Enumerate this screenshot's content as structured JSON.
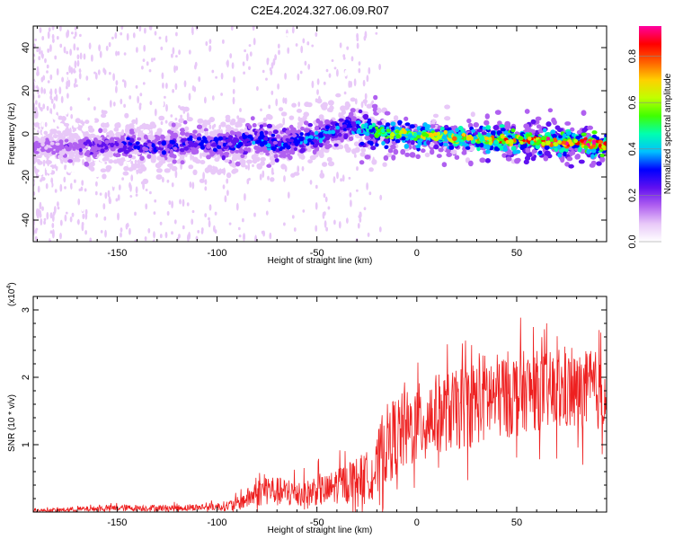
{
  "chart_data": [
    {
      "type": "heatmap",
      "title": "C2E4.2024.327.06.09.R07",
      "xlabel": "Height of straight line (km)",
      "ylabel": "Frequency (Hz)",
      "xlim": [
        -192,
        95
      ],
      "ylim": [
        -50,
        50
      ],
      "xticks": [
        -150,
        -100,
        -50,
        0,
        50
      ],
      "yticks": [
        -40,
        -20,
        0,
        20,
        40
      ],
      "colorbar": {
        "label": "Normalized spectral amplitude",
        "range": [
          0.0,
          0.93
        ],
        "ticks": [
          0.0,
          0.2,
          0.4,
          0.6,
          0.8
        ],
        "colors": [
          "#ffffff",
          "#e8c8f8",
          "#b060f0",
          "#6010f0",
          "#0000ff",
          "#00c0ff",
          "#00ffb0",
          "#40ff00",
          "#c0ff00",
          "#ffd000",
          "#ff6000",
          "#ff0000",
          "#ff00a0"
        ]
      },
      "ridge": {
        "x": [
          -192,
          -170,
          -150,
          -130,
          -110,
          -100,
          -90,
          -80,
          -70,
          -60,
          -50,
          -45,
          -40,
          -35,
          -30,
          -25,
          -20,
          -10,
          0,
          10,
          20,
          30,
          40,
          50,
          60,
          70,
          80,
          90,
          95
        ],
        "frequency": [
          -6,
          -6,
          -5,
          -6,
          -4,
          -5,
          -4,
          -2,
          -5,
          -3,
          -2,
          0,
          2,
          4,
          3,
          2,
          1,
          0,
          -1,
          -1,
          -2,
          -2,
          -3,
          -3,
          -3,
          -4,
          -4,
          -5,
          -6
        ],
        "peak_amplitude": [
          0.15,
          0.2,
          0.25,
          0.28,
          0.3,
          0.3,
          0.33,
          0.35,
          0.33,
          0.33,
          0.35,
          0.36,
          0.35,
          0.33,
          0.4,
          0.48,
          0.55,
          0.6,
          0.65,
          0.68,
          0.7,
          0.72,
          0.75,
          0.8,
          0.85,
          0.88,
          0.9,
          0.85,
          0.8
        ]
      }
    },
    {
      "type": "line",
      "xlabel": "Height of straight line (km)",
      "ylabel": "SNR (10 * v/v)",
      "y_multiplier": "(x10",
      "y_multiplier_exp": "4",
      "y_multiplier_close": ")",
      "xlim": [
        -192,
        95
      ],
      "ylim": [
        0,
        3.2
      ],
      "xticks": [
        -150,
        -100,
        -50,
        0,
        50
      ],
      "yticks": [
        1,
        2,
        3
      ],
      "series": [
        {
          "name": "SNR",
          "color": "#ee2020",
          "x": [
            -192,
            -180,
            -170,
            -160,
            -150,
            -140,
            -130,
            -120,
            -110,
            -100,
            -95,
            -90,
            -85,
            -80,
            -75,
            -70,
            -65,
            -60,
            -55,
            -50,
            -45,
            -40,
            -35,
            -30,
            -25,
            -20,
            -18,
            -15,
            -10,
            -5,
            0,
            5,
            10,
            15,
            20,
            25,
            30,
            35,
            40,
            45,
            50,
            55,
            60,
            65,
            70,
            75,
            80,
            85,
            90,
            95
          ],
          "values": [
            0.02,
            0.03,
            0.04,
            0.05,
            0.06,
            0.06,
            0.06,
            0.06,
            0.07,
            0.08,
            0.09,
            0.12,
            0.2,
            0.28,
            0.35,
            0.3,
            0.28,
            0.3,
            0.25,
            0.35,
            0.3,
            0.4,
            0.45,
            0.5,
            0.55,
            0.6,
            0.9,
            1.0,
            1.15,
            1.2,
            1.3,
            1.4,
            1.45,
            1.5,
            1.5,
            1.6,
            1.65,
            1.7,
            1.7,
            1.75,
            1.75,
            1.8,
            1.8,
            1.8,
            1.75,
            1.8,
            1.75,
            1.8,
            1.8,
            1.75
          ],
          "noise_spread": [
            0.02,
            0.03,
            0.04,
            0.04,
            0.05,
            0.05,
            0.05,
            0.05,
            0.05,
            0.06,
            0.08,
            0.1,
            0.15,
            0.2,
            0.25,
            0.22,
            0.22,
            0.24,
            0.22,
            0.25,
            0.25,
            0.28,
            0.3,
            0.32,
            0.35,
            0.45,
            0.55,
            0.6,
            0.6,
            0.6,
            0.6,
            0.6,
            0.6,
            0.6,
            0.6,
            0.65,
            0.65,
            0.7,
            0.65,
            0.65,
            0.65,
            0.6,
            0.6,
            0.6,
            0.6,
            0.6,
            0.6,
            0.6,
            0.6,
            0.55
          ]
        }
      ]
    }
  ]
}
